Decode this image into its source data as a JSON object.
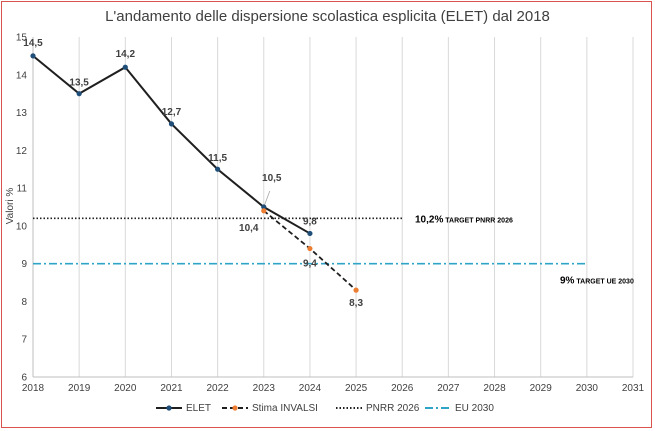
{
  "chart_data": {
    "type": "line",
    "title": "L'andamento delle dispersione scolastica esplicita (ELET) dal 2018",
    "ylabel": "Valori %",
    "xlabel": "",
    "xlim": [
      2018,
      2031
    ],
    "ylim": [
      6,
      15
    ],
    "x_ticks": [
      "2018",
      "2019",
      "2020",
      "2021",
      "2022",
      "2023",
      "2024",
      "2025",
      "2026",
      "2027",
      "2028",
      "2029",
      "2030",
      "2031"
    ],
    "y_ticks": [
      "6",
      "7",
      "8",
      "9",
      "10",
      "11",
      "12",
      "13",
      "14",
      "15"
    ],
    "grid": "vertical",
    "legend_position": "bottom",
    "series": [
      {
        "name": "ELET",
        "color": "#1f4e79",
        "line_color": "#1f1f1f",
        "style": "solid",
        "points": [
          {
            "x": 2018,
            "y": 14.5,
            "label": "14,5"
          },
          {
            "x": 2019,
            "y": 13.5,
            "label": "13,5"
          },
          {
            "x": 2020,
            "y": 14.2,
            "label": "14,2"
          },
          {
            "x": 2021,
            "y": 12.7,
            "label": "12,7"
          },
          {
            "x": 2022,
            "y": 11.5,
            "label": "11,5"
          },
          {
            "x": 2023,
            "y": 10.5,
            "label": "10,5"
          },
          {
            "x": 2024,
            "y": 9.8,
            "label": "9,8"
          }
        ]
      },
      {
        "name": "Stima INVALSI",
        "color": "#ed7d31",
        "line_color": "#1f1f1f",
        "style": "dashed",
        "points": [
          {
            "x": 2023,
            "y": 10.4,
            "label": "10,4"
          },
          {
            "x": 2024,
            "y": 9.4,
            "label": "9,4"
          },
          {
            "x": 2025,
            "y": 8.3,
            "label": "8,3"
          }
        ]
      },
      {
        "name": "PNRR 2026",
        "color": "#1f1f1f",
        "style": "dotted",
        "constant": 10.2,
        "from": 2018,
        "to": 2026
      },
      {
        "name": "EU 2030",
        "color": "#2fa4c8",
        "style": "dashdot",
        "constant": 9,
        "from": 2018,
        "to": 2030
      }
    ],
    "annotations": [
      {
        "big": "10,2%",
        "small": " TARGET PNRR 2026",
        "y": 10.2
      },
      {
        "big": "9%",
        "small": " TARGET UE 2030",
        "y": 9
      }
    ]
  }
}
